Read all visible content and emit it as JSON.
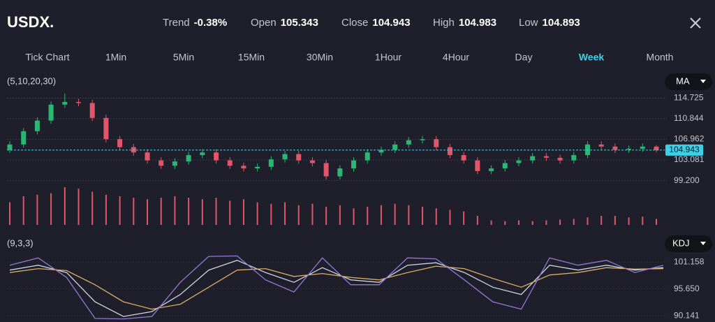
{
  "header": {
    "symbol": "USDX.",
    "stats": [
      {
        "label": "Trend",
        "value": "-0.38%"
      },
      {
        "label": "Open",
        "value": "105.343"
      },
      {
        "label": "Close",
        "value": "104.943"
      },
      {
        "label": "High",
        "value": "104.983"
      },
      {
        "label": "Low",
        "value": "104.893"
      }
    ]
  },
  "tabs": [
    "Tick Chart",
    "1Min",
    "5Min",
    "15Min",
    "30Min",
    "1Hour",
    "4Hour",
    "Day",
    "Week",
    "Month"
  ],
  "active_tab": "Week",
  "chart_data": [
    {
      "type": "candlestick",
      "params": "(5,10,20,30)",
      "indicator": "MA",
      "ylim": [
        97.7,
        116.1
      ],
      "yticks": [
        {
          "value": 99.2,
          "label": "99.200"
        },
        103.081,
        106.962,
        110.844,
        114.725
      ],
      "grid": true,
      "up_color": "#2bb673",
      "down_color": "#e0566a",
      "price_line": 104.943,
      "open": [
        105.0,
        106.0,
        108.5,
        110.5,
        113.5,
        114.0,
        113.8,
        111.0,
        107.0,
        105.5,
        104.5,
        103.0,
        102.0,
        102.8,
        104.0,
        104.5,
        103.0,
        102.0,
        101.5,
        101.8,
        103.2,
        104.2,
        103.0,
        102.5,
        100.0,
        101.5,
        103.0,
        104.5,
        105.0,
        106.0,
        106.8,
        107.0,
        105.5,
        104.0,
        103.0,
        101.0,
        101.5,
        102.5,
        103.0,
        103.8,
        103.5,
        103.0,
        104.0,
        106.0,
        105.6,
        105.0,
        105.2,
        105.6
      ],
      "high": [
        106.6,
        109.1,
        111.1,
        114.1,
        115.6,
        114.6,
        114.4,
        111.6,
        107.6,
        106.1,
        105.1,
        103.6,
        103.4,
        104.6,
        105.1,
        105.1,
        103.6,
        102.6,
        102.4,
        103.8,
        104.8,
        104.8,
        103.6,
        103.1,
        102.1,
        103.6,
        105.1,
        105.6,
        106.6,
        107.4,
        107.6,
        107.6,
        106.1,
        104.6,
        103.6,
        102.1,
        103.1,
        103.6,
        104.4,
        104.4,
        104.1,
        104.6,
        106.6,
        106.6,
        106.2,
        105.8,
        106.2,
        105.9
      ],
      "low": [
        104.4,
        105.4,
        107.9,
        109.9,
        112.9,
        113.2,
        110.4,
        106.4,
        104.9,
        103.9,
        102.4,
        101.4,
        101.4,
        102.2,
        103.4,
        102.4,
        101.4,
        100.9,
        100.9,
        101.2,
        102.6,
        102.4,
        101.9,
        99.4,
        99.4,
        100.9,
        102.4,
        103.9,
        104.4,
        105.4,
        106.2,
        104.9,
        103.4,
        102.4,
        100.4,
        100.4,
        100.9,
        101.9,
        102.4,
        102.9,
        102.4,
        102.4,
        103.4,
        105.0,
        104.4,
        104.4,
        104.6,
        104.5
      ],
      "close": [
        106.0,
        108.5,
        110.5,
        113.5,
        114.0,
        113.8,
        111.0,
        107.0,
        105.5,
        104.5,
        103.0,
        102.0,
        102.8,
        104.0,
        104.5,
        103.0,
        102.0,
        101.5,
        101.8,
        103.2,
        104.2,
        103.0,
        102.5,
        100.0,
        101.5,
        103.0,
        104.5,
        105.0,
        106.0,
        106.8,
        107.0,
        105.5,
        104.0,
        103.0,
        101.0,
        101.5,
        102.5,
        103.0,
        103.8,
        103.5,
        103.0,
        104.0,
        106.0,
        105.6,
        105.0,
        105.2,
        105.6,
        104.943
      ],
      "volume": [
        30,
        38,
        40,
        42,
        50,
        48,
        44,
        40,
        38,
        36,
        34,
        36,
        38,
        36,
        34,
        36,
        32,
        34,
        30,
        28,
        30,
        26,
        28,
        24,
        26,
        22,
        24,
        26,
        28,
        26,
        24,
        22,
        20,
        18,
        12,
        6,
        5,
        6,
        5,
        6,
        7,
        8,
        10,
        12,
        12,
        10,
        11,
        8
      ],
      "volume_color": "#e0566a"
    },
    {
      "type": "line",
      "params": "(9,3,3)",
      "indicator": "KDJ",
      "ylim": [
        89.3,
        102.6
      ],
      "yticks": [
        90.141,
        {
          "value": 95.65,
          "label": "95.650"
        },
        101.158
      ],
      "series": [
        {
          "color": "#cfd6e6",
          "values": [
            99.5,
            100.5,
            99.0,
            93.0,
            90.0,
            91.0,
            94.5,
            99.5,
            101.5,
            99.0,
            97.0,
            100.0,
            97.5,
            97.0,
            100.5,
            101.0,
            99.0,
            96.0,
            94.5,
            100.5,
            99.5,
            100.5,
            99.5,
            100.0
          ]
        },
        {
          "color": "#d9ae62",
          "values": [
            99.0,
            99.8,
            99.4,
            96.5,
            93.0,
            91.5,
            92.5,
            96.0,
            99.5,
            99.8,
            98.2,
            98.8,
            98.0,
            97.5,
            99.0,
            100.3,
            99.8,
            97.8,
            96.0,
            98.5,
            99.0,
            100.0,
            99.7,
            99.8
          ]
        },
        {
          "color": "#9479d6",
          "values": [
            100.5,
            102.0,
            98.0,
            89.6,
            89.5,
            90.0,
            97.0,
            102.3,
            102.4,
            97.5,
            95.0,
            102.0,
            96.5,
            96.5,
            102.0,
            101.8,
            97.5,
            93.0,
            91.5,
            102.0,
            100.5,
            101.5,
            99.0,
            100.5
          ]
        }
      ]
    }
  ]
}
